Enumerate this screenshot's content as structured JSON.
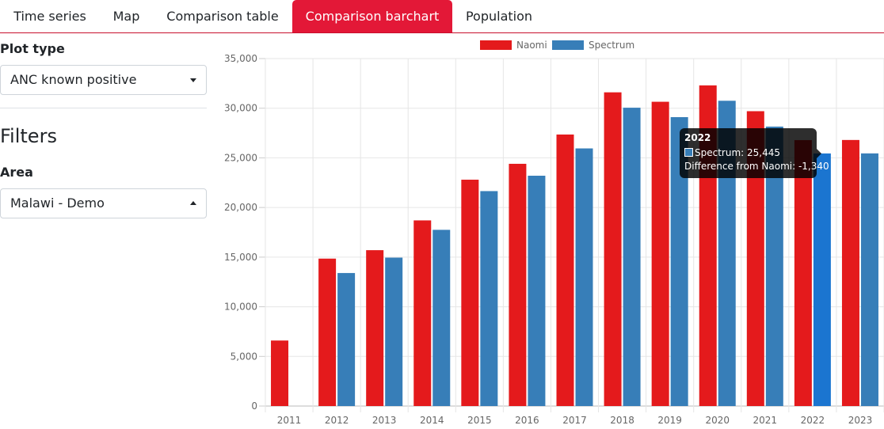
{
  "tabs": [
    {
      "label": "Time series",
      "active": false
    },
    {
      "label": "Map",
      "active": false
    },
    {
      "label": "Comparison table",
      "active": false
    },
    {
      "label": "Comparison barchart",
      "active": true
    },
    {
      "label": "Population",
      "active": false
    }
  ],
  "sidebar": {
    "plot_type_label": "Plot type",
    "plot_type_value": "ANC known positive",
    "filters_heading": "Filters",
    "area_label": "Area",
    "area_value": "Malawi - Demo"
  },
  "colors": {
    "naomi": "#e41a1c",
    "spectrum": "#377eb8",
    "spectrum_highlight": "#1b75d0",
    "active_tab": "#e31837"
  },
  "tooltip": {
    "title": "2022",
    "line1": "Spectrum: 25,445",
    "line2": "Difference from Naomi: -1,340"
  },
  "chart_data": {
    "type": "bar",
    "categories": [
      "2011",
      "2012",
      "2013",
      "2014",
      "2015",
      "2016",
      "2017",
      "2018",
      "2019",
      "2020",
      "2021",
      "2022",
      "2023"
    ],
    "series": [
      {
        "name": "Naomi",
        "values": [
          6600,
          14850,
          15700,
          18700,
          22800,
          24400,
          27350,
          31600,
          30650,
          32300,
          29700,
          26785,
          26800
        ]
      },
      {
        "name": "Spectrum",
        "values": [
          null,
          13400,
          14950,
          17750,
          21650,
          23200,
          25950,
          30050,
          29100,
          30750,
          28150,
          25445,
          25450
        ]
      }
    ],
    "y_ticks": [
      "0",
      "5,000",
      "10,000",
      "15,000",
      "20,000",
      "25,000",
      "30,000",
      "35,000"
    ],
    "ylim": [
      0,
      35000
    ],
    "legend_position": "top",
    "grid": true,
    "highlighted_category": "2022"
  }
}
